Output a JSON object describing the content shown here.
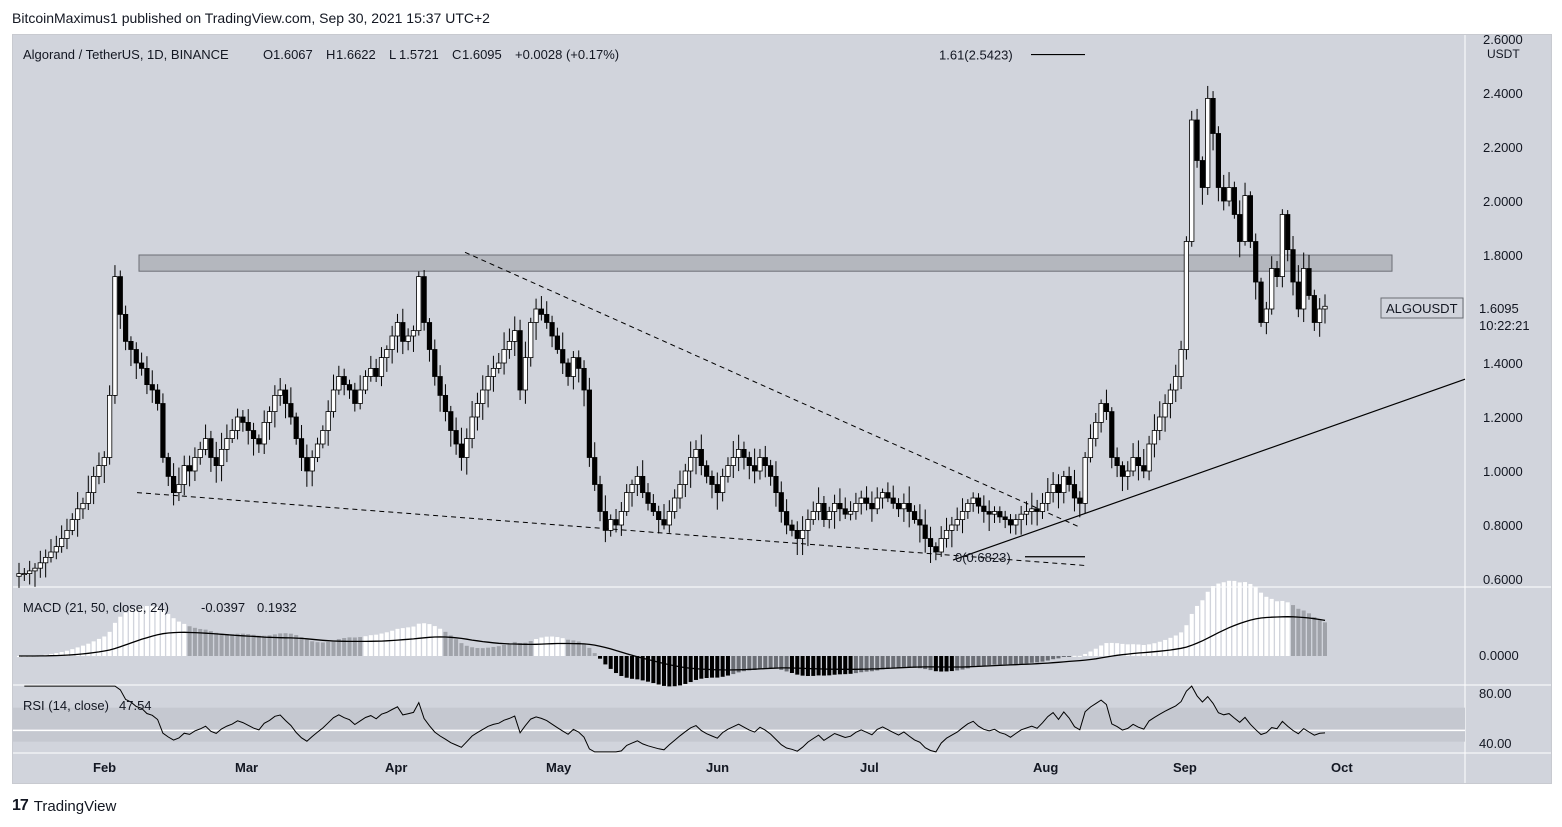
{
  "header": {
    "publisher": "BitcoinMaximus1 published on TradingView.com, Sep 30, 2021 15:37 UTC+2"
  },
  "footer": {
    "brand": "TradingView",
    "logo_text": "17"
  },
  "colors": {
    "bg": "#d1d4dc",
    "candle_up": "#ffffff",
    "candle_down": "#000000",
    "line": "#000000"
  },
  "main_pane": {
    "symbol": "Algorand / TetherUS, 1D, BINANCE",
    "ohlc": [
      {
        "k": "O",
        "v": "1.6067"
      },
      {
        "k": "H",
        "v": "1.6622"
      },
      {
        "k": "L",
        "v": "1.5721"
      },
      {
        "k": "C",
        "v": "1.6095"
      }
    ],
    "change": "+0.0028 (+0.17%)",
    "price_label": "ALGOUSDT",
    "last_price": "1.6095",
    "countdown": "10:22:21",
    "axis_unit": "USDT",
    "fib_top": "1.61(2.5423)",
    "fib_bottom": "0(0.6823)"
  },
  "macd_pane": {
    "label": "MACD (21, 50, close, 24)",
    "v1": "-0.0397",
    "v2": "0.1932",
    "tick": "0.0000"
  },
  "rsi_pane": {
    "label": "RSI (14, close)",
    "value": "47.54",
    "ticks": [
      "80.00",
      "40.00"
    ]
  },
  "chart_data": {
    "type": "candlestick",
    "title": "Algorand / TetherUS, 1D, BINANCE",
    "ylim": [
      0.6,
      2.6
    ],
    "y_ticks": [
      "2.6000",
      "2.4000",
      "2.2000",
      "2.0000",
      "1.8000",
      "1.6000",
      "1.4000",
      "1.2000",
      "1.0000",
      "0.8000",
      "0.6000"
    ],
    "x_ticks": [
      "Feb",
      "Mar",
      "Apr",
      "May",
      "Jun",
      "Jul",
      "Aug",
      "Sep",
      "Oct"
    ],
    "resistance_zone": [
      1.74,
      1.8
    ],
    "closes": [
      0.62,
      0.62,
      0.63,
      0.64,
      0.66,
      0.68,
      0.7,
      0.72,
      0.75,
      0.78,
      0.82,
      0.86,
      0.88,
      0.92,
      0.98,
      1.02,
      1.05,
      1.28,
      1.72,
      1.58,
      1.48,
      1.45,
      1.4,
      1.38,
      1.32,
      1.3,
      1.25,
      1.05,
      0.98,
      0.92,
      0.95,
      1.02,
      1.0,
      1.05,
      1.08,
      1.12,
      1.05,
      1.02,
      1.08,
      1.12,
      1.15,
      1.2,
      1.18,
      1.15,
      1.12,
      1.1,
      1.18,
      1.22,
      1.28,
      1.3,
      1.25,
      1.2,
      1.12,
      1.05,
      1.0,
      1.05,
      1.1,
      1.15,
      1.22,
      1.3,
      1.35,
      1.32,
      1.3,
      1.25,
      1.3,
      1.35,
      1.38,
      1.35,
      1.42,
      1.45,
      1.5,
      1.55,
      1.48,
      1.5,
      1.52,
      1.72,
      1.55,
      1.45,
      1.35,
      1.28,
      1.22,
      1.15,
      1.1,
      1.05,
      1.12,
      1.2,
      1.25,
      1.3,
      1.35,
      1.38,
      1.4,
      1.45,
      1.48,
      1.52,
      1.3,
      1.42,
      1.55,
      1.6,
      1.58,
      1.55,
      1.5,
      1.45,
      1.4,
      1.35,
      1.42,
      1.38,
      1.3,
      1.05,
      0.95,
      0.85,
      0.78,
      0.82,
      0.8,
      0.85,
      0.92,
      0.95,
      0.98,
      0.92,
      0.88,
      0.85,
      0.82,
      0.8,
      0.85,
      0.9,
      0.95,
      1.0,
      1.05,
      1.08,
      1.02,
      0.98,
      0.95,
      0.92,
      0.98,
      1.02,
      1.05,
      1.08,
      1.05,
      1.02,
      1.0,
      1.05,
      1.02,
      0.98,
      0.92,
      0.85,
      0.8,
      0.78,
      0.75,
      0.78,
      0.82,
      0.85,
      0.88,
      0.82,
      0.85,
      0.88,
      0.86,
      0.84,
      0.85,
      0.88,
      0.9,
      0.88,
      0.86,
      0.9,
      0.92,
      0.9,
      0.88,
      0.86,
      0.88,
      0.85,
      0.82,
      0.8,
      0.75,
      0.72,
      0.7,
      0.75,
      0.78,
      0.8,
      0.82,
      0.85,
      0.88,
      0.9,
      0.87,
      0.85,
      0.84,
      0.85,
      0.83,
      0.82,
      0.8,
      0.82,
      0.84,
      0.85,
      0.86,
      0.85,
      0.88,
      0.92,
      0.95,
      0.92,
      0.98,
      0.95,
      0.9,
      0.88,
      1.05,
      1.12,
      1.18,
      1.25,
      1.22,
      1.05,
      1.02,
      0.98,
      1.0,
      1.05,
      1.02,
      1.0,
      1.1,
      1.15,
      1.2,
      1.25,
      1.3,
      1.35,
      1.45,
      1.85,
      2.3,
      2.15,
      2.05,
      2.38,
      2.25,
      2.05,
      2.0,
      2.05,
      1.95,
      1.85,
      2.02,
      1.85,
      1.7,
      1.55,
      1.6,
      1.75,
      1.72,
      1.95,
      1.82,
      1.7,
      1.6,
      1.75,
      1.65,
      1.55,
      1.6,
      1.61
    ],
    "trendlines": [
      "Descending resistance",
      "Descending support",
      "Ascending support"
    ],
    "macd": {
      "ylim": [
        -0.1,
        0.3
      ]
    },
    "rsi": {
      "ylim": [
        30,
        90
      ],
      "band": [
        40,
        70
      ],
      "midline": 50
    }
  }
}
